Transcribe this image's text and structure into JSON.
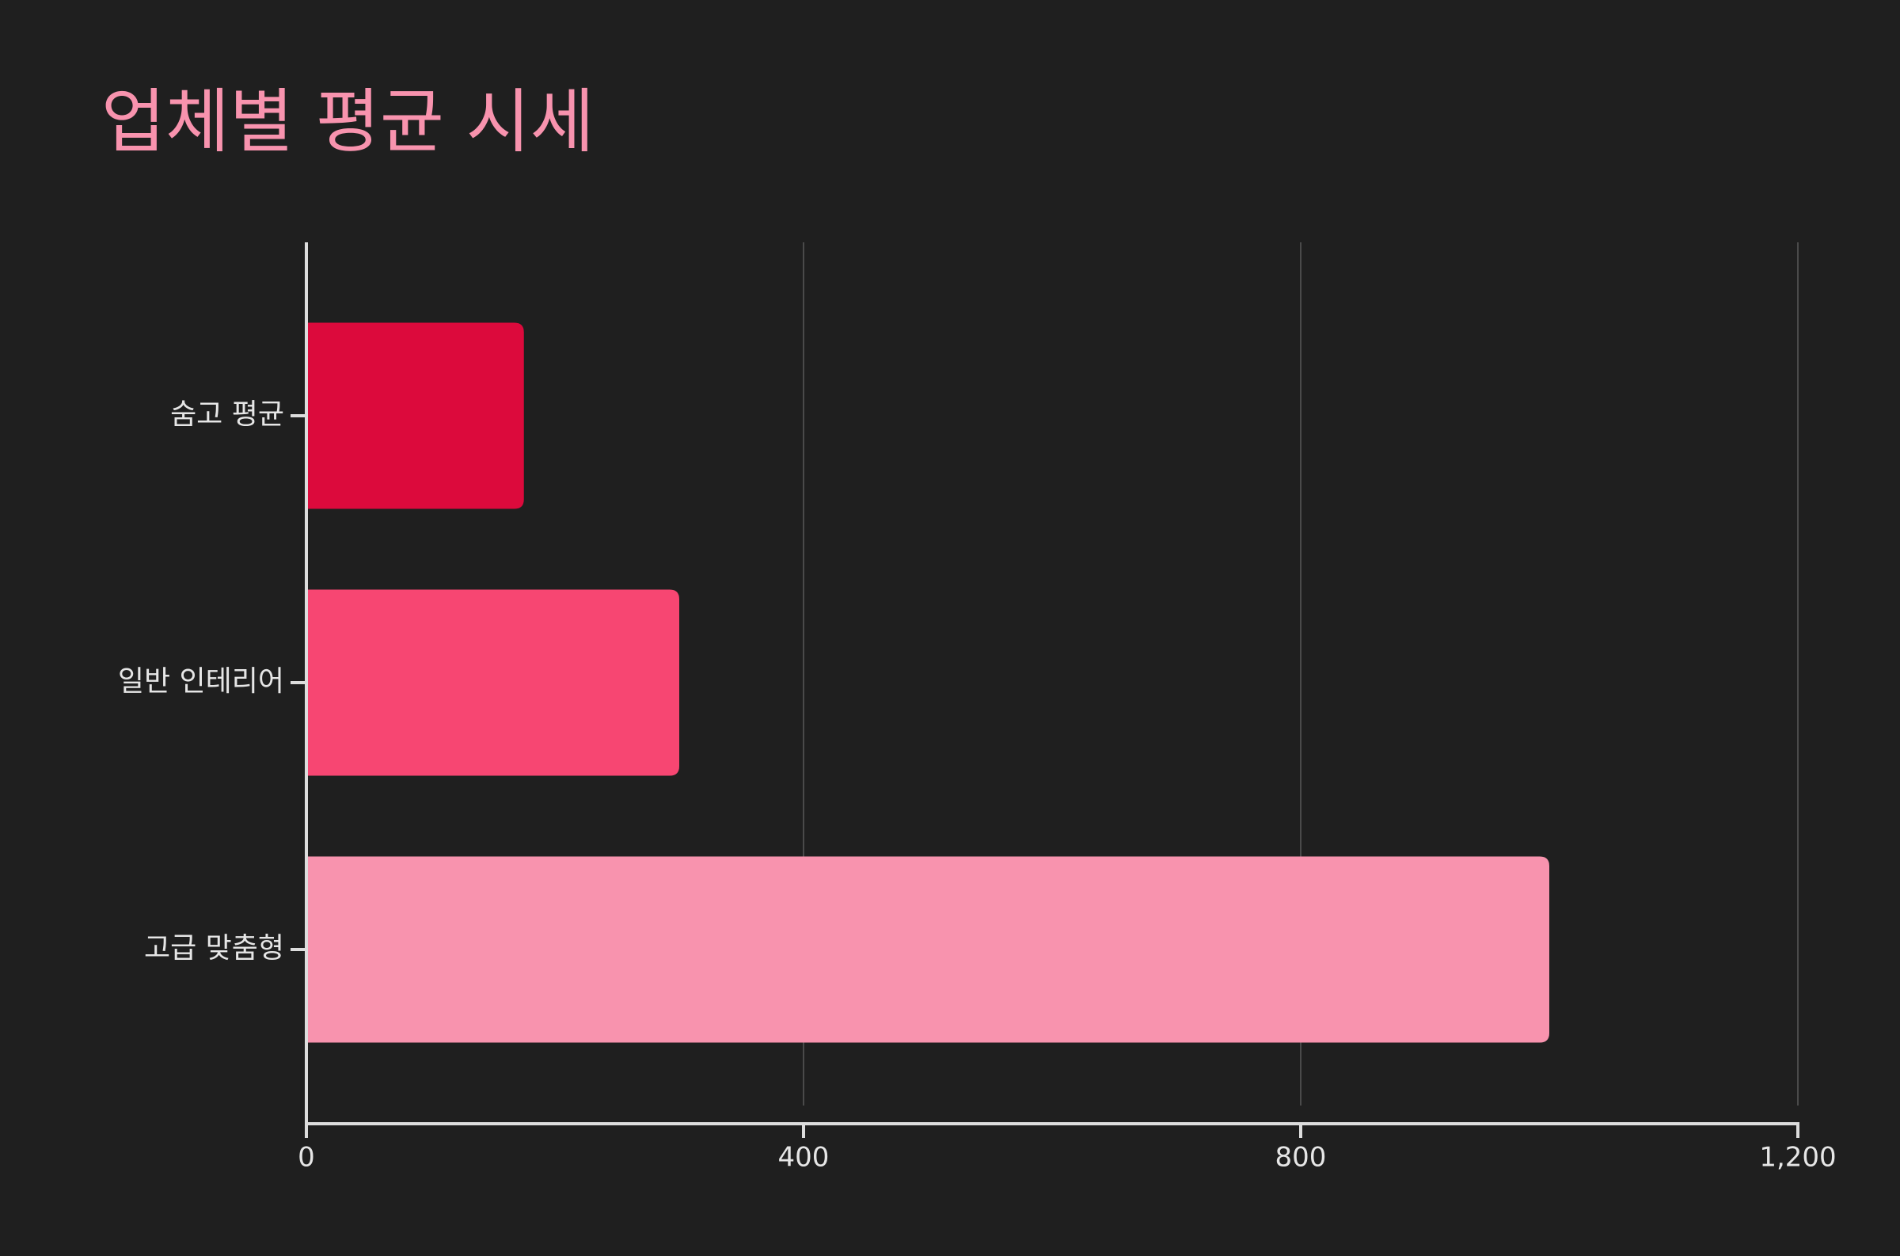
{
  "chart_data": {
    "type": "bar",
    "orientation": "horizontal",
    "title": "업체별 평균 시세",
    "categories": [
      "숨고 평균",
      "일반 인테리어",
      "고급 맞춤형"
    ],
    "values": [
      175,
      300,
      1000
    ],
    "colors": [
      "#dc0a3c",
      "#f74672",
      "#f893ae"
    ],
    "xlim": [
      0,
      1200
    ],
    "xticks": [
      0,
      400,
      800,
      {
        "value": 1200,
        "label": "1,200"
      }
    ],
    "grid": true
  }
}
